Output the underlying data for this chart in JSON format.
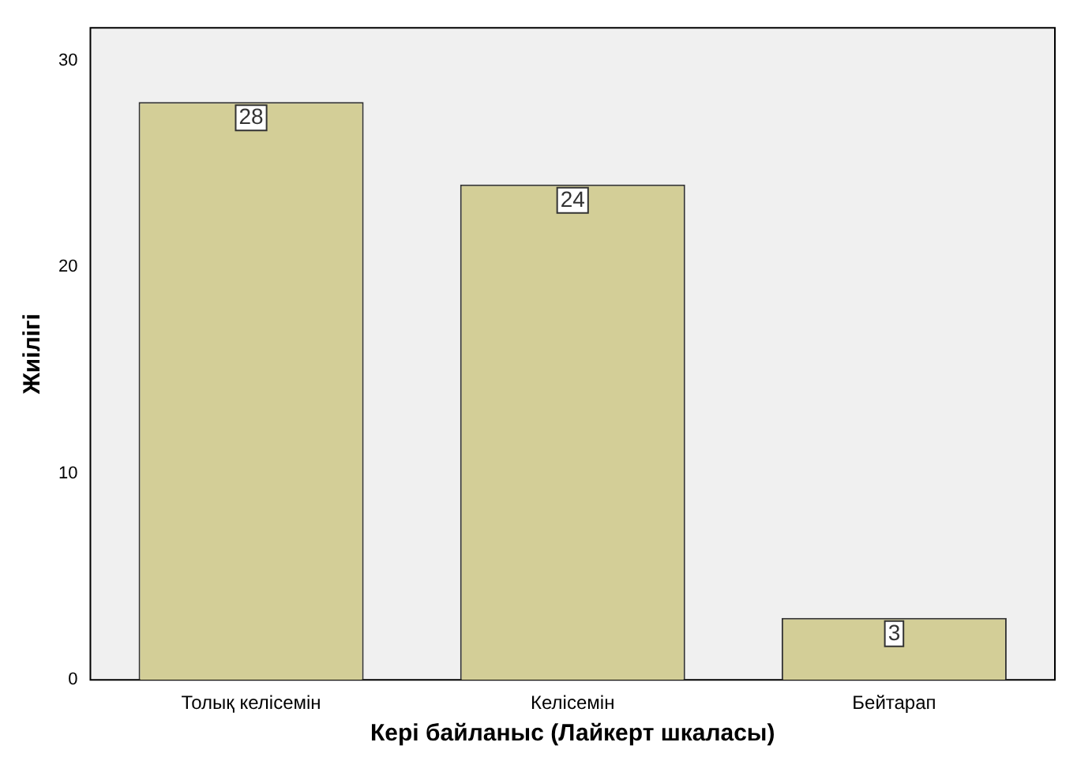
{
  "chart_data": {
    "type": "bar",
    "xlabel": "Кері байланыс (Лайкерт шкаласы)",
    "ylabel": "Жиілігі",
    "categories": [
      "Толық келісемін",
      "Келісемін",
      "Бейтарап"
    ],
    "values": [
      28,
      24,
      3
    ],
    "color": "#d3ce97",
    "ylim": [
      0,
      31.6
    ],
    "yticks": [
      0,
      10,
      20,
      30
    ],
    "grid": false,
    "data_labels": true
  }
}
